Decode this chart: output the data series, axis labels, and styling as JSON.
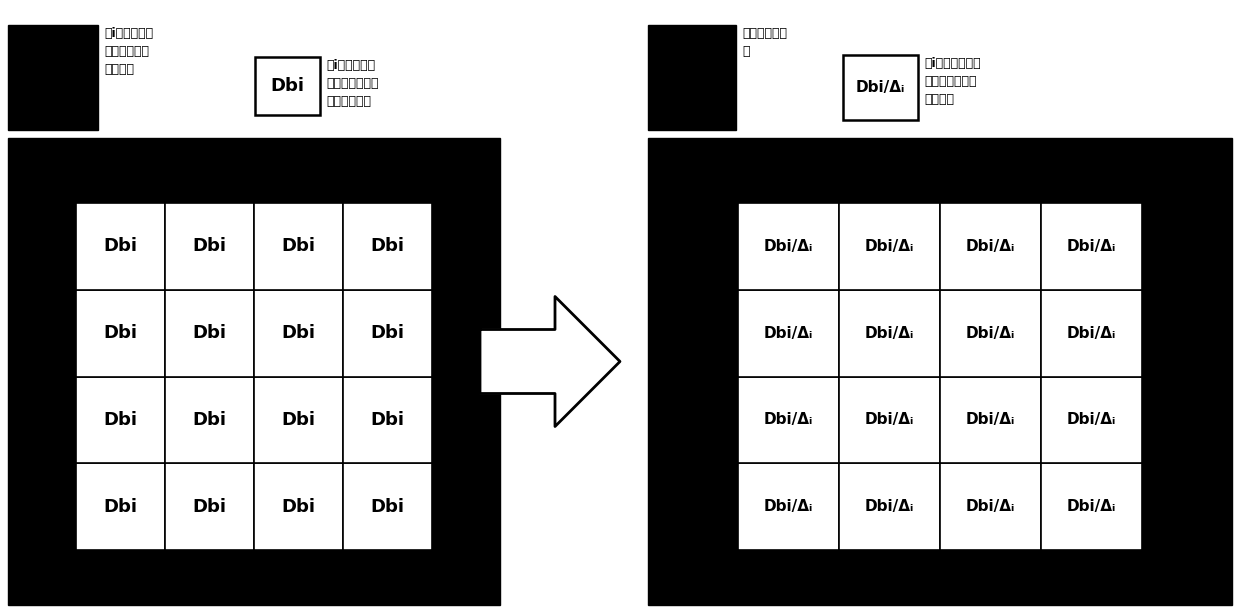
{
  "bg_color": "#ffffff",
  "panel_color": "#000000",
  "white": "#ffffff",
  "black": "#000000",
  "left_legend": {
    "black_box_label": "第i个新显示屏\n的参照物的校\n正系数组",
    "white_box_label": "Dbi",
    "white_box_desc": "第i个新显示屏\n的待校正显示屏\n的参考系数组"
  },
  "right_legend": {
    "black_box_label": "参照物比例系\n数",
    "white_box_label": "Dbi/Δᵢ",
    "white_box_desc": "第i个新显示屏的\n待校正显示屏的\n校正系数"
  },
  "left_grid_text": "Dbi",
  "right_grid_text": "Dbi/Δᵢ",
  "rows": 4,
  "cols": 4,
  "figwidth": 12.4,
  "figheight": 6.1,
  "dpi": 100
}
